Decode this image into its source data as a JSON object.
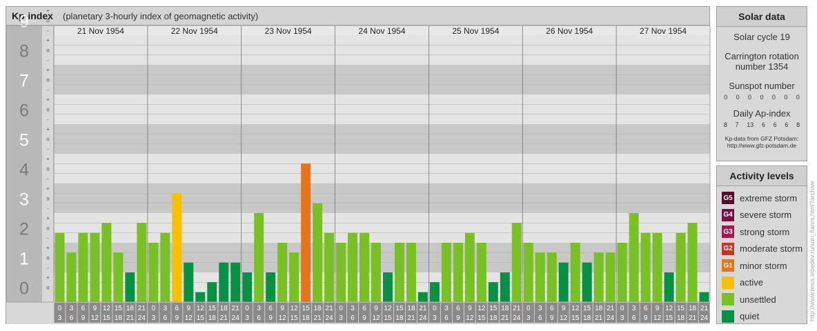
{
  "header": {
    "title": "Kp-index",
    "subtitle": "(planetary 3-hourly index of geomagnetic activity)"
  },
  "solar": {
    "title": "Solar data",
    "cycle": "Solar cycle 19",
    "carrington_line1": "Carrington rotation",
    "carrington_line2": "number 1354",
    "sunspot_label": "Sunspot number",
    "sunspots": [
      "0",
      "0",
      "0",
      "0",
      "0",
      "0",
      "0"
    ],
    "ap_label": "Daily Ap-index",
    "ap": [
      "8",
      "7",
      "13",
      "6",
      "6",
      "6",
      "8"
    ],
    "source_line1": "Kp-data from GFZ Potsdam:",
    "source_line2": "http://www.gfz-potsdam.de"
  },
  "levels": {
    "title": "Activity levels",
    "items": [
      {
        "code": "G5",
        "label": "extreme storm",
        "color": "#5a0a28"
      },
      {
        "code": "G4",
        "label": "severe storm",
        "color": "#7a1040"
      },
      {
        "code": "G3",
        "label": "strong storm",
        "color": "#a8164e"
      },
      {
        "code": "G2",
        "label": "moderate storm",
        "color": "#d0301c"
      },
      {
        "code": "G1",
        "label": "minor storm",
        "color": "#e8741a"
      },
      {
        "code": "",
        "label": "active",
        "color": "#f8c000"
      },
      {
        "code": "",
        "label": "unsettled",
        "color": "#78c024"
      },
      {
        "code": "",
        "label": "quiet",
        "color": "#089044"
      }
    ]
  },
  "watermark": "http://www.tesis.lebedev.ru/sun_flares.html?archive",
  "chart_data": {
    "type": "bar",
    "days": [
      "21 Nov 1954",
      "22 Nov 1954",
      "23 Nov 1954",
      "24 Nov 1954",
      "25 Nov 1954",
      "26 Nov 1954",
      "27 Nov 1954"
    ],
    "hour_starts": [
      "0",
      "3",
      "6",
      "9",
      "12",
      "15",
      "18",
      "21"
    ],
    "hour_ends": [
      "3",
      "6",
      "9",
      "12",
      "15",
      "18",
      "21",
      "24"
    ],
    "ylim": [
      0,
      9
    ],
    "y_ticks": [
      "0",
      "1",
      "2",
      "3",
      "4",
      "5",
      "6",
      "7",
      "8",
      "9"
    ],
    "minor_ticks": [
      "+",
      "o",
      "-"
    ],
    "values": [
      2.33,
      1.67,
      2.33,
      2.33,
      2.67,
      1.67,
      1.0,
      2.67,
      2.0,
      2.33,
      3.67,
      1.33,
      0.33,
      0.67,
      1.33,
      1.33,
      1.0,
      3.0,
      1.0,
      2.0,
      1.67,
      4.67,
      3.33,
      2.33,
      2.0,
      2.33,
      2.33,
      2.0,
      1.0,
      2.0,
      2.0,
      0.33,
      0.67,
      2.0,
      2.0,
      2.33,
      2.0,
      0.67,
      1.0,
      2.67,
      2.0,
      1.67,
      1.67,
      1.33,
      2.0,
      1.33,
      1.67,
      1.67,
      2.0,
      3.0,
      2.33,
      2.33,
      1.0,
      2.33,
      2.67,
      0.33
    ],
    "colors": {
      "quiet": "#089044",
      "unsettled": "#78c024",
      "active": "#f8c000",
      "minor": "#e8741a",
      "moderate": "#d0301c"
    }
  }
}
